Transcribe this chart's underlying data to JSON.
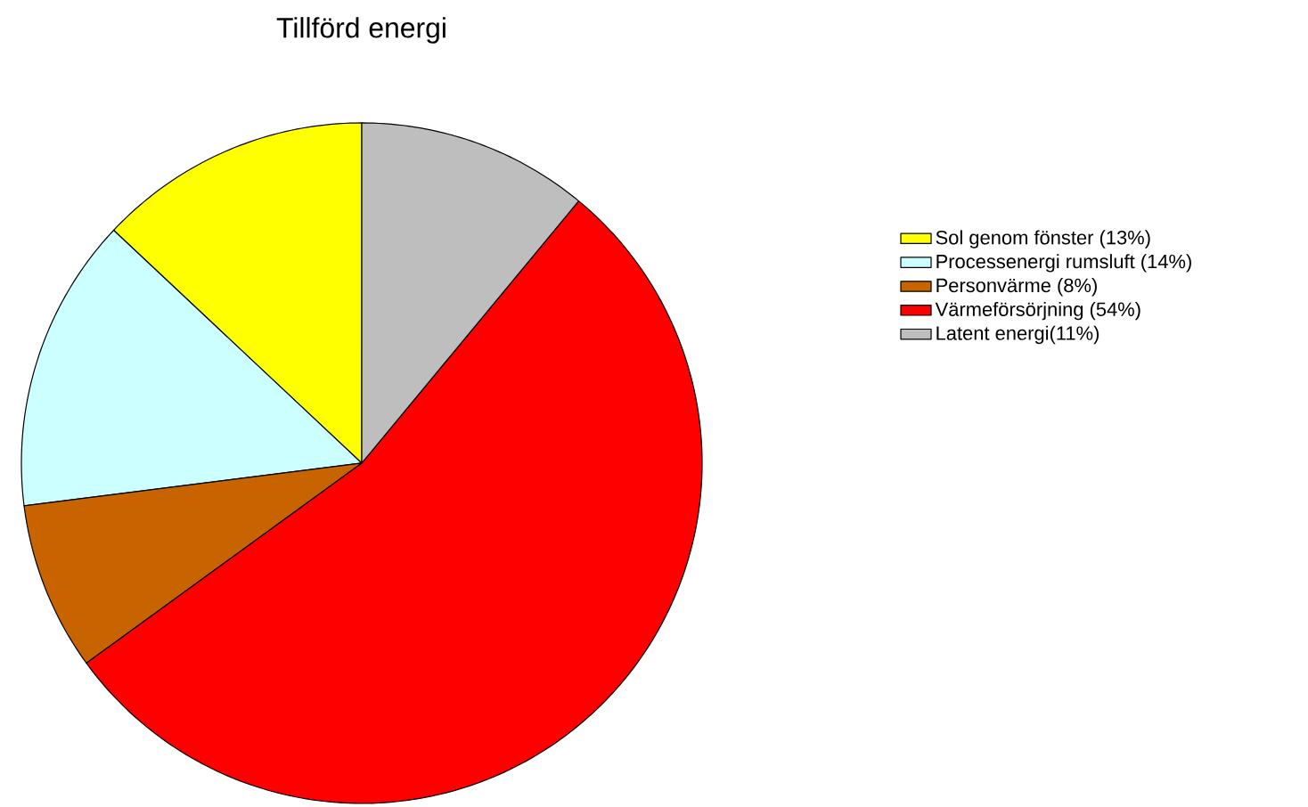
{
  "chart_data": {
    "type": "pie",
    "title": "Tillförd energi",
    "categories": [
      "Sol genom fönster (13%)",
      "Processenergi rumsluft (14%)",
      "Personvärme (8%)",
      "Värmeförsörjning (54%)",
      "Latent energi(11%)"
    ],
    "values": [
      13,
      14,
      8,
      54,
      11
    ],
    "colors": [
      "#ffff00",
      "#ccffff",
      "#c86400",
      "#ff0000",
      "#bebebe"
    ],
    "legend": "right"
  }
}
